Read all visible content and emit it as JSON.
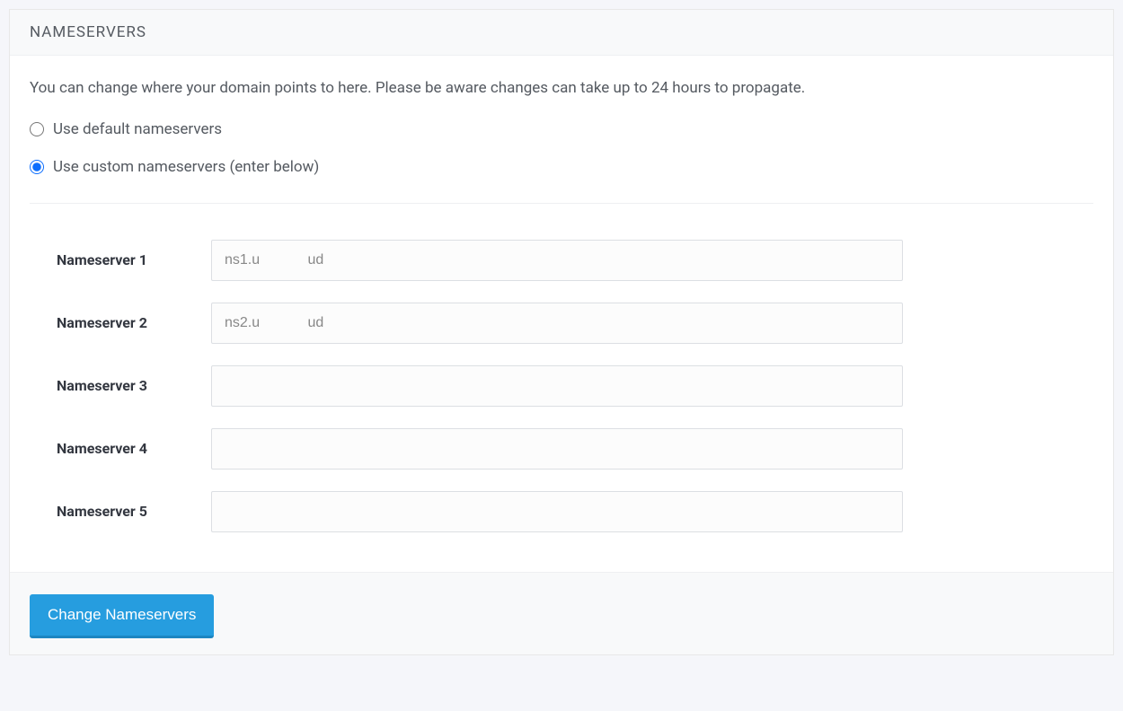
{
  "colors": {
    "page_background": "#f5f6fa",
    "panel_background": "#ffffff",
    "header_background": "#f8f9fa",
    "footer_background": "#f8f9fa",
    "border": "#eef0f2",
    "input_border": "#dcdfe3",
    "text_primary": "#555a61",
    "text_label": "#333740",
    "text_input": "#888888",
    "button_background": "#269ddf",
    "button_border_bottom": "#1d86c1",
    "button_text": "#ffffff",
    "radio_accent": "#0d6efd"
  },
  "panel": {
    "title": "NAMESERVERS",
    "description": "You can change where your domain points to here. Please be aware changes can take up to 24 hours to propagate."
  },
  "radio": {
    "default_label": "Use default nameservers",
    "custom_label": "Use custom nameservers (enter below)",
    "selected": "custom"
  },
  "nameservers": [
    {
      "label": "Nameserver 1",
      "value": "ns1.u            ud"
    },
    {
      "label": "Nameserver 2",
      "value": "ns2.u            ud"
    },
    {
      "label": "Nameserver 3",
      "value": ""
    },
    {
      "label": "Nameserver 4",
      "value": ""
    },
    {
      "label": "Nameserver 5",
      "value": ""
    }
  ],
  "button": {
    "submit_label": "Change Nameservers"
  }
}
